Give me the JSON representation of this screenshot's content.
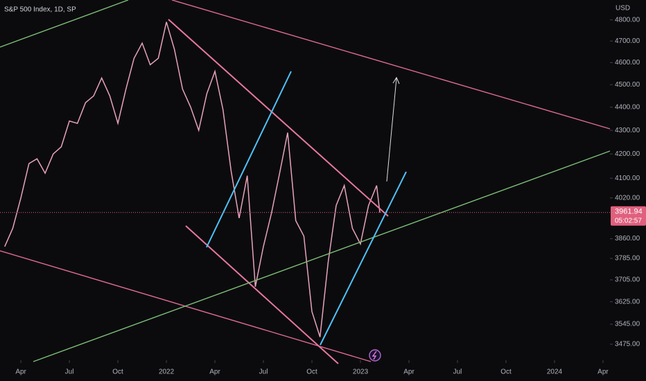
{
  "chart_data": {
    "type": "line",
    "title": "S&P 500 Index, 1D, SP",
    "currency": "USD",
    "log_scale": true,
    "color": "#e8a3bb",
    "x": [
      2.0,
      2.5,
      3.0,
      3.5,
      4.0,
      4.5,
      5.0,
      5.5,
      6.0,
      6.5,
      7.0,
      7.5,
      8.0,
      8.5,
      9.0,
      9.5,
      10.0,
      10.5,
      11.0,
      11.5,
      12.0,
      12.5,
      13.0,
      13.5,
      14.0,
      14.5,
      15.0,
      15.5,
      16.0,
      16.5,
      17.0,
      17.5,
      18.0,
      18.5,
      19.0,
      19.5,
      20.0,
      20.5,
      21.0,
      21.5,
      22.0,
      22.5,
      23.0,
      23.5,
      24.0,
      24.5,
      25.0,
      25.2
    ],
    "values": [
      3830,
      3900,
      4020,
      4160,
      4180,
      4120,
      4200,
      4230,
      4340,
      4330,
      4420,
      4450,
      4530,
      4450,
      4330,
      4480,
      4620,
      4690,
      4590,
      4620,
      4790,
      4660,
      4480,
      4400,
      4300,
      4460,
      4560,
      4390,
      4130,
      3940,
      4110,
      3680,
      3830,
      3960,
      4120,
      4290,
      3930,
      3870,
      3590,
      3500,
      3770,
      3990,
      4070,
      3900,
      3840,
      3990,
      4070,
      3961.94
    ],
    "last_price": 3961.94,
    "countdown": "05:02:57",
    "xlim": [
      1.71,
      39.43
    ],
    "ylim": [
      4896,
      3420
    ],
    "xticks": [
      {
        "value": 3,
        "label": "Apr"
      },
      {
        "value": 6,
        "label": "Jul"
      },
      {
        "value": 9,
        "label": "Oct"
      },
      {
        "value": 12,
        "label": "2022"
      },
      {
        "value": 15,
        "label": "Apr"
      },
      {
        "value": 18,
        "label": "Jul"
      },
      {
        "value": 21,
        "label": "Oct"
      },
      {
        "value": 24,
        "label": "2023"
      },
      {
        "value": 27,
        "label": "Apr"
      },
      {
        "value": 30,
        "label": "Jul"
      },
      {
        "value": 33,
        "label": "Oct"
      },
      {
        "value": 36,
        "label": "2024"
      },
      {
        "value": 39,
        "label": "Apr"
      }
    ],
    "yticks": [
      {
        "value": 4800,
        "label": "4800.00"
      },
      {
        "value": 4700,
        "label": "4700.00"
      },
      {
        "value": 4600,
        "label": "4600.00"
      },
      {
        "value": 4500,
        "label": "4500.00"
      },
      {
        "value": 4400,
        "label": "4400.00"
      },
      {
        "value": 4300,
        "label": "4300.00"
      },
      {
        "value": 4200,
        "label": "4200.00"
      },
      {
        "value": 4100,
        "label": "4100.00"
      },
      {
        "value": 4020,
        "label": "4020.00"
      },
      {
        "value": 3860,
        "label": "3860.00"
      },
      {
        "value": 3785,
        "label": "3785.00"
      },
      {
        "value": 3705,
        "label": "3705.00"
      },
      {
        "value": 3625,
        "label": "3625.00"
      },
      {
        "value": 3545,
        "label": "3545.00"
      },
      {
        "value": 3475,
        "label": "3475.00"
      }
    ]
  }
}
